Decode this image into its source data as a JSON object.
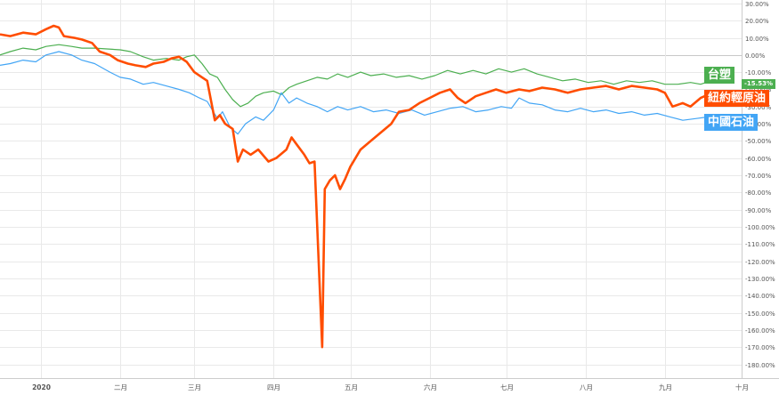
{
  "chart_data": {
    "type": "line",
    "y_axis_position": "right",
    "y_tick_labels": [
      "30.00%",
      "20.00%",
      "10.00%",
      "0.00%",
      "-10.00%",
      "-20.00%",
      "-30.00%",
      "-40.00%",
      "-50.00%",
      "-60.00%",
      "-70.00%",
      "-80.00%",
      "-90.00%",
      "-100.00%",
      "-110.00%",
      "-120.00%",
      "-130.00%",
      "-140.00%",
      "-150.00%",
      "-160.00%",
      "-170.00%",
      "-180.00%"
    ],
    "ylim": [
      -188,
      32
    ],
    "x_tick_labels": [
      {
        "label": "2020",
        "x": "2020-01",
        "bold": true
      },
      {
        "label": "二月",
        "x": "2020-02"
      },
      {
        "label": "三月",
        "x": "2020-03"
      },
      {
        "label": "四月",
        "x": "2020-04"
      },
      {
        "label": "五月",
        "x": "2020-05"
      },
      {
        "label": "六月",
        "x": "2020-06"
      },
      {
        "label": "七月",
        "x": "2020-07"
      },
      {
        "label": "八月",
        "x": "2020-08"
      },
      {
        "label": "九月",
        "x": "2020-09"
      },
      {
        "label": "十月",
        "x": "2020-10"
      }
    ],
    "xlim": [
      "2019-12-16",
      "2020-10-01"
    ],
    "grid": true,
    "series": [
      {
        "name": "台塑",
        "color": "#4caf50",
        "end_value_label": "-15.53%",
        "points": [
          [
            "2019-12-16",
            0
          ],
          [
            "2019-12-20",
            2
          ],
          [
            "2019-12-25",
            4
          ],
          [
            "2019-12-30",
            3
          ],
          [
            "2020-01-03",
            5
          ],
          [
            "2020-01-08",
            6
          ],
          [
            "2020-01-13",
            5
          ],
          [
            "2020-01-17",
            4
          ],
          [
            "2020-01-22",
            4
          ],
          [
            "2020-02-01",
            3
          ],
          [
            "2020-02-05",
            2
          ],
          [
            "2020-02-10",
            -1
          ],
          [
            "2020-02-14",
            -3
          ],
          [
            "2020-02-19",
            -2
          ],
          [
            "2020-02-24",
            -3
          ],
          [
            "2020-02-27",
            -1
          ],
          [
            "2020-03-01",
            0
          ],
          [
            "2020-03-04",
            -5
          ],
          [
            "2020-03-07",
            -11
          ],
          [
            "2020-03-10",
            -13
          ],
          [
            "2020-03-13",
            -20
          ],
          [
            "2020-03-16",
            -26
          ],
          [
            "2020-03-19",
            -30
          ],
          [
            "2020-03-22",
            -28
          ],
          [
            "2020-03-25",
            -24
          ],
          [
            "2020-03-28",
            -22
          ],
          [
            "2020-04-01",
            -21
          ],
          [
            "2020-04-04",
            -23
          ],
          [
            "2020-04-07",
            -19
          ],
          [
            "2020-04-10",
            -17
          ],
          [
            "2020-04-14",
            -15
          ],
          [
            "2020-04-18",
            -13
          ],
          [
            "2020-04-22",
            -14
          ],
          [
            "2020-04-26",
            -11
          ],
          [
            "2020-04-30",
            -13
          ],
          [
            "2020-05-05",
            -10
          ],
          [
            "2020-05-09",
            -12
          ],
          [
            "2020-05-14",
            -11
          ],
          [
            "2020-05-19",
            -13
          ],
          [
            "2020-05-24",
            -12
          ],
          [
            "2020-05-29",
            -14
          ],
          [
            "2020-06-03",
            -12
          ],
          [
            "2020-06-08",
            -9
          ],
          [
            "2020-06-13",
            -11
          ],
          [
            "2020-06-18",
            -9
          ],
          [
            "2020-06-23",
            -11
          ],
          [
            "2020-06-28",
            -8
          ],
          [
            "2020-07-03",
            -10
          ],
          [
            "2020-07-08",
            -8
          ],
          [
            "2020-07-13",
            -11
          ],
          [
            "2020-07-18",
            -13
          ],
          [
            "2020-07-23",
            -15
          ],
          [
            "2020-07-28",
            -14
          ],
          [
            "2020-08-02",
            -16
          ],
          [
            "2020-08-07",
            -15
          ],
          [
            "2020-08-12",
            -17
          ],
          [
            "2020-08-17",
            -15
          ],
          [
            "2020-08-22",
            -16
          ],
          [
            "2020-08-27",
            -15
          ],
          [
            "2020-09-01",
            -17
          ],
          [
            "2020-09-06",
            -17
          ],
          [
            "2020-09-11",
            -16
          ],
          [
            "2020-09-15",
            -17
          ],
          [
            "2020-09-18",
            -15.53
          ]
        ]
      },
      {
        "name": "紐約輕原油",
        "color": "#ff4d00",
        "points": [
          [
            "2019-12-16",
            12
          ],
          [
            "2019-12-20",
            11
          ],
          [
            "2019-12-25",
            13
          ],
          [
            "2019-12-30",
            12
          ],
          [
            "2020-01-03",
            15
          ],
          [
            "2020-01-06",
            17
          ],
          [
            "2020-01-08",
            16
          ],
          [
            "2020-01-10",
            11
          ],
          [
            "2020-01-14",
            10
          ],
          [
            "2020-01-17",
            9
          ],
          [
            "2020-01-21",
            7
          ],
          [
            "2020-01-24",
            2
          ],
          [
            "2020-01-28",
            0
          ],
          [
            "2020-01-31",
            -3
          ],
          [
            "2020-02-04",
            -5
          ],
          [
            "2020-02-07",
            -6
          ],
          [
            "2020-02-11",
            -7
          ],
          [
            "2020-02-14",
            -5
          ],
          [
            "2020-02-18",
            -4
          ],
          [
            "2020-02-21",
            -2
          ],
          [
            "2020-02-24",
            -1
          ],
          [
            "2020-02-27",
            -4
          ],
          [
            "2020-03-01",
            -10
          ],
          [
            "2020-03-04",
            -13
          ],
          [
            "2020-03-06",
            -15
          ],
          [
            "2020-03-09",
            -38
          ],
          [
            "2020-03-11",
            -35
          ],
          [
            "2020-03-13",
            -40
          ],
          [
            "2020-03-16",
            -43
          ],
          [
            "2020-03-18",
            -62
          ],
          [
            "2020-03-20",
            -55
          ],
          [
            "2020-03-23",
            -58
          ],
          [
            "2020-03-26",
            -55
          ],
          [
            "2020-03-30",
            -62
          ],
          [
            "2020-04-02",
            -60
          ],
          [
            "2020-04-06",
            -55
          ],
          [
            "2020-04-08",
            -48
          ],
          [
            "2020-04-10",
            -52
          ],
          [
            "2020-04-13",
            -58
          ],
          [
            "2020-04-15",
            -63
          ],
          [
            "2020-04-17",
            -62
          ],
          [
            "2020-04-20",
            -170
          ],
          [
            "2020-04-21",
            -78
          ],
          [
            "2020-04-23",
            -73
          ],
          [
            "2020-04-25",
            -70
          ],
          [
            "2020-04-27",
            -78
          ],
          [
            "2020-04-29",
            -72
          ],
          [
            "2020-05-01",
            -65
          ],
          [
            "2020-05-05",
            -55
          ],
          [
            "2020-05-09",
            -50
          ],
          [
            "2020-05-13",
            -45
          ],
          [
            "2020-05-17",
            -40
          ],
          [
            "2020-05-20",
            -33
          ],
          [
            "2020-05-24",
            -32
          ],
          [
            "2020-05-28",
            -28
          ],
          [
            "2020-06-01",
            -25
          ],
          [
            "2020-06-05",
            -22
          ],
          [
            "2020-06-09",
            -20
          ],
          [
            "2020-06-12",
            -25
          ],
          [
            "2020-06-15",
            -28
          ],
          [
            "2020-06-19",
            -24
          ],
          [
            "2020-06-23",
            -22
          ],
          [
            "2020-06-27",
            -20
          ],
          [
            "2020-07-01",
            -22
          ],
          [
            "2020-07-06",
            -20
          ],
          [
            "2020-07-10",
            -21
          ],
          [
            "2020-07-15",
            -19
          ],
          [
            "2020-07-20",
            -20
          ],
          [
            "2020-07-25",
            -22
          ],
          [
            "2020-07-30",
            -20
          ],
          [
            "2020-08-04",
            -19
          ],
          [
            "2020-08-09",
            -18
          ],
          [
            "2020-08-14",
            -20
          ],
          [
            "2020-08-19",
            -18
          ],
          [
            "2020-08-24",
            -19
          ],
          [
            "2020-08-29",
            -20
          ],
          [
            "2020-09-01",
            -22
          ],
          [
            "2020-09-04",
            -30
          ],
          [
            "2020-09-08",
            -28
          ],
          [
            "2020-09-11",
            -30
          ],
          [
            "2020-09-15",
            -25
          ],
          [
            "2020-09-18",
            -23
          ]
        ]
      },
      {
        "name": "中國石油",
        "color": "#42a5f5",
        "points": [
          [
            "2019-12-16",
            -6
          ],
          [
            "2019-12-20",
            -5
          ],
          [
            "2019-12-25",
            -3
          ],
          [
            "2019-12-30",
            -4
          ],
          [
            "2020-01-03",
            0
          ],
          [
            "2020-01-08",
            2
          ],
          [
            "2020-01-13",
            0
          ],
          [
            "2020-01-17",
            -3
          ],
          [
            "2020-01-22",
            -5
          ],
          [
            "2020-01-28",
            -10
          ],
          [
            "2020-02-01",
            -13
          ],
          [
            "2020-02-05",
            -14
          ],
          [
            "2020-02-10",
            -17
          ],
          [
            "2020-02-14",
            -16
          ],
          [
            "2020-02-19",
            -18
          ],
          [
            "2020-02-24",
            -20
          ],
          [
            "2020-02-28",
            -22
          ],
          [
            "2020-03-03",
            -25
          ],
          [
            "2020-03-06",
            -27
          ],
          [
            "2020-03-10",
            -37
          ],
          [
            "2020-03-12",
            -33
          ],
          [
            "2020-03-15",
            -42
          ],
          [
            "2020-03-18",
            -46
          ],
          [
            "2020-03-21",
            -40
          ],
          [
            "2020-03-25",
            -36
          ],
          [
            "2020-03-28",
            -38
          ],
          [
            "2020-04-01",
            -32
          ],
          [
            "2020-04-04",
            -22
          ],
          [
            "2020-04-07",
            -28
          ],
          [
            "2020-04-10",
            -25
          ],
          [
            "2020-04-14",
            -28
          ],
          [
            "2020-04-18",
            -30
          ],
          [
            "2020-04-22",
            -33
          ],
          [
            "2020-04-26",
            -30
          ],
          [
            "2020-04-30",
            -32
          ],
          [
            "2020-05-05",
            -30
          ],
          [
            "2020-05-10",
            -33
          ],
          [
            "2020-05-15",
            -32
          ],
          [
            "2020-05-20",
            -34
          ],
          [
            "2020-05-25",
            -32
          ],
          [
            "2020-05-30",
            -35
          ],
          [
            "2020-06-04",
            -33
          ],
          [
            "2020-06-09",
            -31
          ],
          [
            "2020-06-14",
            -30
          ],
          [
            "2020-06-19",
            -33
          ],
          [
            "2020-06-24",
            -32
          ],
          [
            "2020-06-29",
            -30
          ],
          [
            "2020-07-03",
            -31
          ],
          [
            "2020-07-06",
            -25
          ],
          [
            "2020-07-10",
            -28
          ],
          [
            "2020-07-15",
            -29
          ],
          [
            "2020-07-20",
            -32
          ],
          [
            "2020-07-25",
            -33
          ],
          [
            "2020-07-30",
            -31
          ],
          [
            "2020-08-04",
            -33
          ],
          [
            "2020-08-09",
            -32
          ],
          [
            "2020-08-14",
            -34
          ],
          [
            "2020-08-19",
            -33
          ],
          [
            "2020-08-24",
            -35
          ],
          [
            "2020-08-29",
            -34
          ],
          [
            "2020-09-03",
            -36
          ],
          [
            "2020-09-08",
            -38
          ],
          [
            "2020-09-13",
            -37
          ],
          [
            "2020-09-18",
            -36
          ]
        ]
      }
    ]
  }
}
